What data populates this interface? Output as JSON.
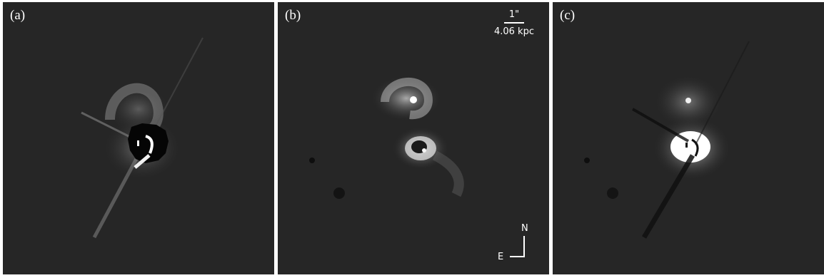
{
  "panels": [
    {
      "label": "(a)"
    },
    {
      "label": "(b)",
      "scale_bar": {
        "angular": "1\"",
        "physical": "4.06 kpc"
      },
      "compass": {
        "north": "N",
        "east": "E"
      }
    },
    {
      "label": "(c)"
    }
  ]
}
